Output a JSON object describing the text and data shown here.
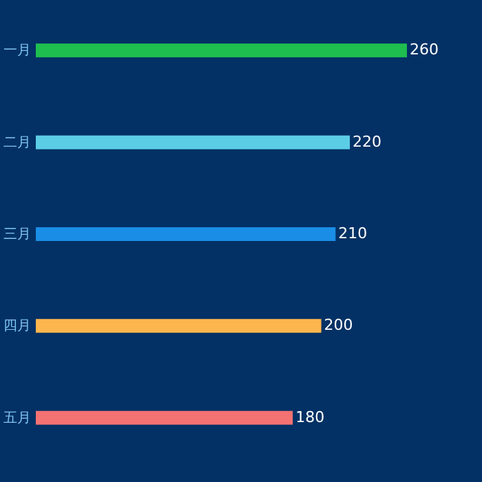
{
  "chart_data": {
    "type": "bar",
    "orientation": "horizontal",
    "categories": [
      "一月",
      "二月",
      "三月",
      "四月",
      "五月"
    ],
    "values": [
      260,
      220,
      210,
      200,
      180
    ],
    "colors": [
      "#1fbf4f",
      "#5bcde5",
      "#1a8ee6",
      "#fdb64e",
      "#f47272"
    ],
    "data_labels": true
  }
}
